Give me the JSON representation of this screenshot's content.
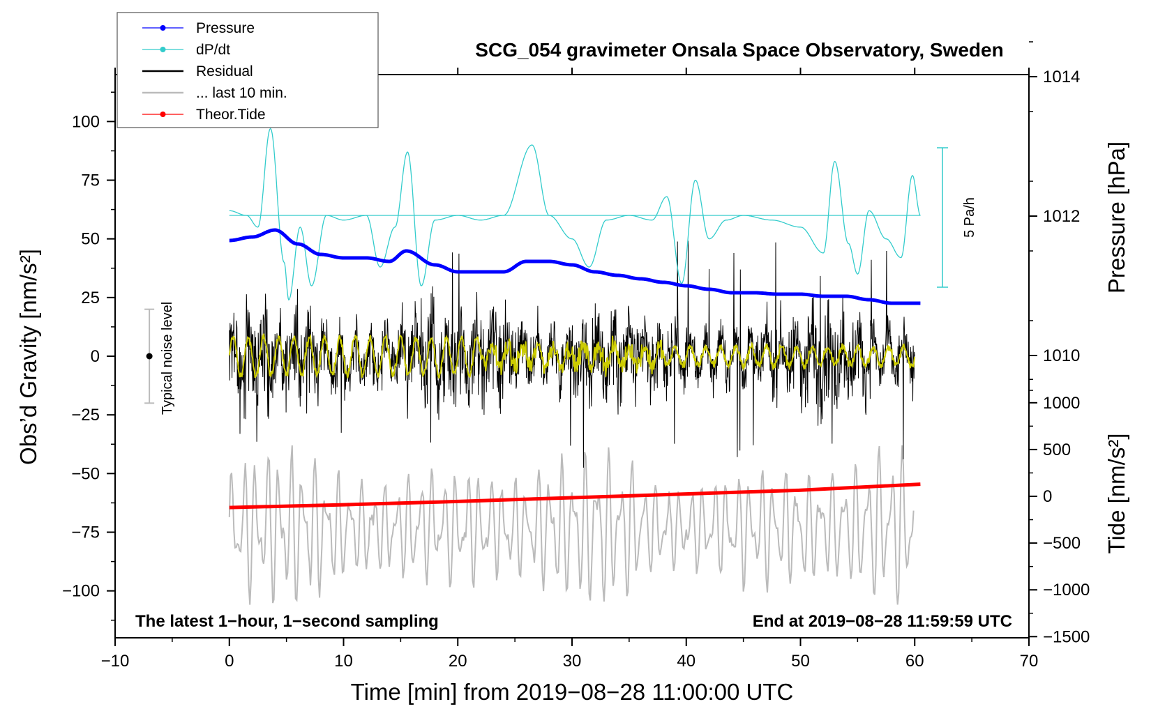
{
  "chart_data": {
    "type": "line",
    "title": "SCG_054 gravimeter Onsala Space Observatory, Sweden",
    "xlabel": "Time [min] from 2019−08−28 11:00:00 UTC",
    "ylabel_left": "Obs’d Gravity [nm/s²]",
    "ylabel_right_top": "Pressure [hPa]",
    "ylabel_right_bottom": "Tide [nm/s²]",
    "xlim": [
      -10,
      70
    ],
    "ylim": [
      -120,
      120
    ],
    "x_ticks": [
      -10,
      0,
      10,
      20,
      30,
      40,
      50,
      60,
      70
    ],
    "x_tick_labels": [
      "−10",
      "0",
      "10",
      "20",
      "30",
      "40",
      "50",
      "60",
      "70"
    ],
    "y_ticks": [
      -100,
      -75,
      -50,
      -25,
      0,
      25,
      50,
      75,
      100
    ],
    "y_tick_labels": [
      "−100",
      "−75",
      "−50",
      "−25",
      "0",
      "25",
      "50",
      "75",
      "100"
    ],
    "pressure_axis": {
      "ticks": [
        1010,
        1012,
        1014
      ],
      "tick_labels": [
        "1010",
        "1012",
        "1014"
      ]
    },
    "tide_axis": {
      "ticks": [
        -1500,
        -1000,
        -500,
        0,
        500,
        1000
      ],
      "tick_labels": [
        "−1500",
        "−1000",
        "−500",
        "0",
        "500",
        "1000"
      ]
    },
    "legend": [
      {
        "name": "Pressure",
        "color": "#0000ff",
        "style": "line-dot"
      },
      {
        "name": "dP/dt",
        "color": "#33cccc",
        "style": "line-dot"
      },
      {
        "name": "Residual",
        "color": "#000000",
        "style": "line"
      },
      {
        "name": "... last 10 min.",
        "color": "#bbbbbb",
        "style": "line"
      },
      {
        "name": "Theor.Tide",
        "color": "#ff0000",
        "style": "line-dot"
      }
    ],
    "series": [
      {
        "name": "Pressure",
        "axis": "pressure_hPa",
        "color": "#0000ff",
        "x": [
          0,
          2,
          4,
          6,
          8,
          10,
          12,
          14,
          15.5,
          18,
          20,
          22,
          24,
          26,
          28,
          30,
          32,
          34,
          36,
          38,
          40,
          42,
          44,
          46,
          48,
          50,
          52,
          54,
          56,
          58,
          60.5
        ],
        "values": [
          1011.65,
          1011.7,
          1011.8,
          1011.6,
          1011.45,
          1011.4,
          1011.4,
          1011.35,
          1011.5,
          1011.3,
          1011.2,
          1011.2,
          1011.2,
          1011.35,
          1011.35,
          1011.3,
          1011.2,
          1011.15,
          1011.1,
          1011.05,
          1011.0,
          1010.95,
          1010.9,
          1010.9,
          1010.88,
          1010.88,
          1010.85,
          1010.85,
          1010.8,
          1010.75,
          1010.75
        ]
      },
      {
        "name": "dP/dt",
        "axis": "gravity_offset",
        "color": "#33cccc",
        "reference_level": 60,
        "x": [
          0,
          1.5,
          2.5,
          3.6,
          4.8,
          5.2,
          6.2,
          7.2,
          8.5,
          10,
          12,
          13.2,
          14.5,
          15.6,
          16.8,
          18,
          20,
          22,
          24,
          26.5,
          28,
          30,
          31.5,
          33,
          35,
          37,
          38.3,
          39.6,
          40.8,
          42,
          43.5,
          45,
          47.5,
          50,
          52,
          53,
          54.2,
          55,
          56,
          57.5,
          58.8,
          59.8,
          60.5
        ],
        "values": [
          62,
          60,
          55,
          97,
          40,
          24,
          55,
          30,
          60,
          58,
          60,
          38,
          55,
          87,
          30,
          58,
          60,
          58,
          60,
          90,
          60,
          50,
          38,
          58,
          60,
          58,
          68,
          31,
          75,
          50,
          58,
          60,
          58,
          55,
          44,
          83,
          48,
          35,
          62,
          50,
          42,
          77,
          60
        ]
      },
      {
        "name": "Residual",
        "axis": "gravity",
        "color": "#000000",
        "x_range": [
          0,
          60
        ],
        "min": -52,
        "max": 53
      },
      {
        "name": "Residual (smoothed)",
        "axis": "gravity",
        "color": "#cccc00",
        "x_range": [
          0,
          60
        ],
        "min": -15,
        "max": 15
      },
      {
        "name": "... last 10 min.",
        "axis": "gravity_offset",
        "color": "#bbbbbb",
        "x_range": [
          0,
          60
        ],
        "min": -108,
        "max": -38
      },
      {
        "name": "Theor.Tide",
        "axis": "tide_nm_s2",
        "color": "#ff0000",
        "x": [
          0,
          10,
          20,
          30,
          40,
          50,
          60.5
        ],
        "values": [
          -120,
          -90,
          -55,
          -15,
          25,
          65,
          130
        ]
      }
    ],
    "annotations": {
      "noise_label": "Typical noise level",
      "noise_level_range": [
        -20,
        20
      ],
      "pa_label": "5 Pa/h",
      "note_left": "The latest 1−hour, 1−second sampling",
      "note_right": "End at 2019−08−28 11:59:59 UTC"
    }
  }
}
